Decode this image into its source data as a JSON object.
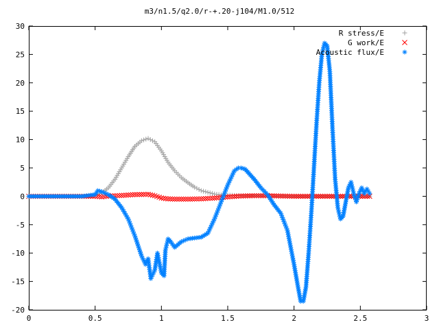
{
  "chart_data": {
    "type": "scatter",
    "title": "m3/n1.5/q2.0/r-+.20-j104/M1.0/512",
    "xlabel": "",
    "ylabel": "",
    "xlim": [
      0,
      3
    ],
    "ylim": [
      -20,
      30
    ],
    "xticks": [
      0,
      0.5,
      1,
      1.5,
      2,
      2.5,
      3
    ],
    "xtick_labels": [
      "0",
      "0.5",
      "1",
      "1.5",
      "2",
      "2.5",
      "3"
    ],
    "yticks": [
      -20,
      -15,
      -10,
      -5,
      0,
      5,
      10,
      15,
      20,
      25,
      30
    ],
    "ytick_labels": [
      "-20",
      "-15",
      "-10",
      "-5",
      "0",
      "5",
      "10",
      "15",
      "20",
      "25",
      "30"
    ],
    "grid": false,
    "legend_position": "top-right",
    "series": [
      {
        "name": "R stress/E",
        "marker": "+",
        "color": "#a0a0a0",
        "x": [
          0.0,
          0.1,
          0.2,
          0.3,
          0.4,
          0.5,
          0.55,
          0.6,
          0.65,
          0.7,
          0.75,
          0.8,
          0.85,
          0.9,
          0.95,
          1.0,
          1.05,
          1.1,
          1.15,
          1.2,
          1.25,
          1.3,
          1.35,
          1.4,
          1.45,
          1.5,
          1.6,
          1.7,
          1.8,
          1.9,
          2.0,
          2.1,
          2.2,
          2.3,
          2.4,
          2.5,
          2.57
        ],
        "y": [
          0,
          0,
          0,
          0,
          0,
          0.2,
          0.6,
          1.5,
          3.0,
          5.0,
          7.0,
          8.8,
          9.8,
          10.2,
          9.6,
          8.0,
          6.0,
          4.5,
          3.3,
          2.4,
          1.6,
          1.0,
          0.7,
          0.4,
          0.25,
          0.2,
          0.1,
          0.1,
          0.05,
          0.05,
          0,
          0,
          0,
          0,
          0,
          0,
          0
        ]
      },
      {
        "name": "G work/E",
        "marker": "x",
        "color": "#ff0000",
        "x": [
          0.0,
          0.1,
          0.2,
          0.3,
          0.4,
          0.5,
          0.55,
          0.6,
          0.7,
          0.8,
          0.9,
          0.95,
          1.0,
          1.05,
          1.1,
          1.2,
          1.3,
          1.4,
          1.5,
          1.6,
          1.7,
          1.8,
          1.9,
          2.0,
          2.1,
          2.2,
          2.3,
          2.4,
          2.5,
          2.57
        ],
        "y": [
          0,
          0,
          0,
          0,
          0,
          0,
          -0.1,
          0.05,
          0.15,
          0.3,
          0.35,
          0.1,
          -0.3,
          -0.45,
          -0.5,
          -0.5,
          -0.45,
          -0.3,
          -0.1,
          0.05,
          0.1,
          0.1,
          0.05,
          0,
          0,
          0,
          0,
          0,
          0,
          0
        ]
      },
      {
        "name": "Acoustic flux/E",
        "marker": "*",
        "color": "#0080ff",
        "x": [
          0.0,
          0.1,
          0.2,
          0.3,
          0.4,
          0.5,
          0.52,
          0.55,
          0.6,
          0.65,
          0.7,
          0.75,
          0.8,
          0.85,
          0.88,
          0.9,
          0.92,
          0.95,
          0.97,
          1.0,
          1.02,
          1.03,
          1.05,
          1.07,
          1.1,
          1.15,
          1.2,
          1.3,
          1.35,
          1.4,
          1.45,
          1.5,
          1.55,
          1.58,
          1.6,
          1.63,
          1.65,
          1.7,
          1.75,
          1.8,
          1.85,
          1.9,
          1.95,
          2.0,
          2.03,
          2.05,
          2.07,
          2.09,
          2.11,
          2.13,
          2.15,
          2.17,
          2.19,
          2.21,
          2.23,
          2.25,
          2.27,
          2.29,
          2.31,
          2.33,
          2.35,
          2.37,
          2.39,
          2.41,
          2.43,
          2.45,
          2.47,
          2.49,
          2.51,
          2.53,
          2.55,
          2.57
        ],
        "y": [
          0,
          0,
          0,
          0,
          0,
          0.3,
          1.0,
          0.8,
          0.3,
          -0.5,
          -2.0,
          -4.0,
          -7.0,
          -10.5,
          -12.0,
          -11.0,
          -14.5,
          -13.0,
          -10.0,
          -13.5,
          -14.0,
          -9.5,
          -7.5,
          -8.0,
          -9.0,
          -8.0,
          -7.5,
          -7.2,
          -6.5,
          -4.0,
          -1.0,
          2.0,
          4.5,
          5.0,
          5.0,
          4.8,
          4.3,
          3.0,
          1.5,
          0.3,
          -1.5,
          -3.0,
          -6.0,
          -12.0,
          -16.0,
          -18.5,
          -18.5,
          -16.0,
          -10.0,
          -3.0,
          5.0,
          13.0,
          20.0,
          25.0,
          27.0,
          26.5,
          22.0,
          12.0,
          3.0,
          -2.0,
          -4.0,
          -3.5,
          -1.0,
          1.5,
          2.5,
          0.5,
          -1.0,
          0.5,
          1.5,
          0.5,
          1.3,
          0.5
        ]
      }
    ]
  }
}
